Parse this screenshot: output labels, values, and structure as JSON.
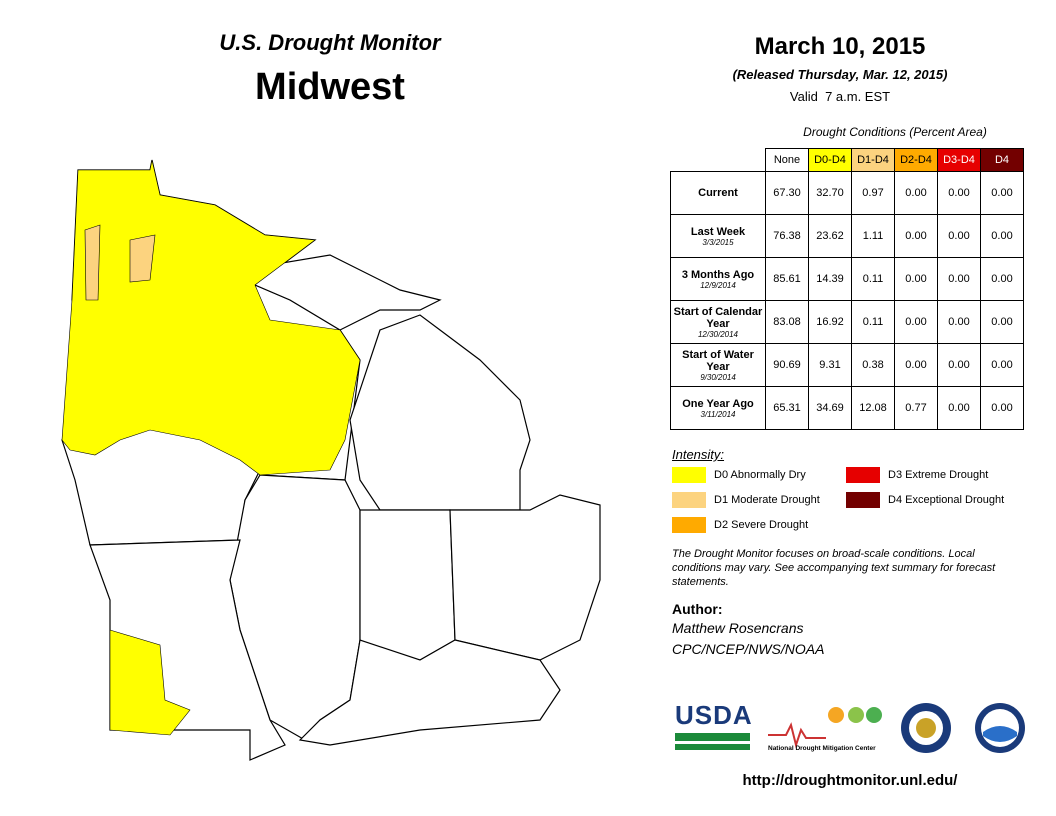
{
  "header": {
    "title": "U.S. Drought Monitor",
    "region": "Midwest",
    "date": "March 10, 2015",
    "released": "(Released Thursday, Mar. 12, 2015)",
    "valid": "Valid  7 a.m. EST"
  },
  "table": {
    "caption": "Drought Conditions (Percent Area)",
    "columns": [
      {
        "label": "None",
        "color": "#ffffff",
        "text": "#000000"
      },
      {
        "label": "D0-D4",
        "color": "#ffff00",
        "text": "#000000"
      },
      {
        "label": "D1-D4",
        "color": "#fcd37f",
        "text": "#000000"
      },
      {
        "label": "D2-D4",
        "color": "#ffaa00",
        "text": "#000000"
      },
      {
        "label": "D3-D4",
        "color": "#e60000",
        "text": "#ffffff"
      },
      {
        "label": "D4",
        "color": "#730000",
        "text": "#ffffff"
      }
    ],
    "rows": [
      {
        "label": "Current",
        "values": [
          "67.30",
          "32.70",
          "0.97",
          "0.00",
          "0.00",
          "0.00"
        ]
      },
      {
        "label": "Last Week",
        "date": "3/3/2015",
        "values": [
          "76.38",
          "23.62",
          "1.11",
          "0.00",
          "0.00",
          "0.00"
        ]
      },
      {
        "label": "3 Months Ago",
        "date": "12/9/2014",
        "values": [
          "85.61",
          "14.39",
          "0.11",
          "0.00",
          "0.00",
          "0.00"
        ]
      },
      {
        "label": "Start of Calendar Year",
        "date": "12/30/2014",
        "values": [
          "83.08",
          "16.92",
          "0.11",
          "0.00",
          "0.00",
          "0.00"
        ]
      },
      {
        "label": "Start of Water Year",
        "date": "9/30/2014",
        "values": [
          "90.69",
          "9.31",
          "0.38",
          "0.00",
          "0.00",
          "0.00"
        ]
      },
      {
        "label": "One Year Ago",
        "date": "3/11/2014",
        "values": [
          "65.31",
          "34.69",
          "12.08",
          "0.77",
          "0.00",
          "0.00"
        ]
      }
    ]
  },
  "legend": {
    "title": "Intensity:",
    "items": [
      {
        "label": "D0 Abnormally Dry",
        "color": "#ffff00"
      },
      {
        "label": "D3 Extreme Drought",
        "color": "#e60000"
      },
      {
        "label": "D1 Moderate Drought",
        "color": "#fcd37f"
      },
      {
        "label": "D4 Exceptional Drought",
        "color": "#730000"
      },
      {
        "label": "D2 Severe Drought",
        "color": "#ffaa00"
      }
    ]
  },
  "note": "The Drought Monitor focuses on broad-scale conditions. Local conditions may vary. See accompanying text summary for forecast statements.",
  "author": {
    "heading": "Author:",
    "name": "Matthew Rosencrans",
    "org": "CPC/NCEP/NWS/NOAA"
  },
  "logos": {
    "usda": "USDA",
    "ndmc": "National Drought Mitigation Center"
  },
  "url": "http://droughtmonitor.unl.edu/"
}
